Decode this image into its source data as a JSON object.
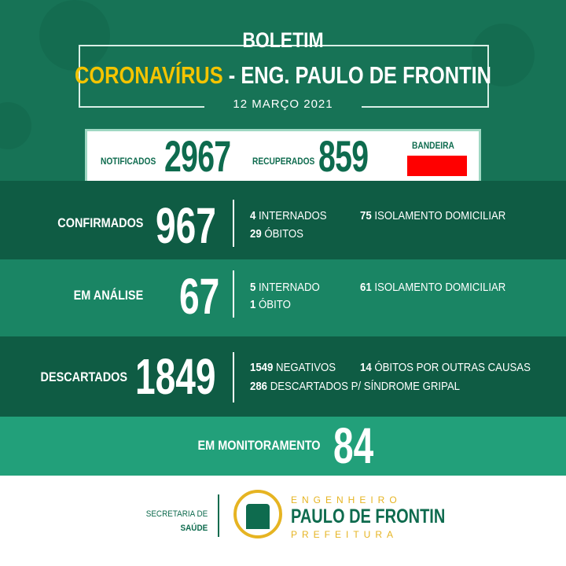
{
  "header": {
    "title": "BOLETIM",
    "subject": "CORONAVÍRUS",
    "separator": " - ",
    "place": "ENG. PAULO DE FRONTIN",
    "date": "12 MARÇO 2021"
  },
  "summary": {
    "notified_label": "NOTIFICADOS",
    "notified": "2967",
    "recovered_label": "RECUPERADOS",
    "recovered": "859",
    "flag_label": "BANDEIRA",
    "flag_color": "#ff0000"
  },
  "confirmed": {
    "label": "CONFIRMADOS",
    "value": "967",
    "hosp": "4",
    "hosp_label": "INTERNADOS",
    "deaths": "29",
    "deaths_label": "ÓBITOS",
    "home": "75",
    "home_label": "ISOLAMENTO DOMICILIAR"
  },
  "analysis": {
    "label": "EM ANÁLISE",
    "value": "67",
    "hosp": "5",
    "hosp_label": "INTERNADO",
    "deaths": "1",
    "deaths_label": "ÓBITO",
    "home": "61",
    "home_label": "ISOLAMENTO DOMICILIAR"
  },
  "discarded": {
    "label": "DESCARTADOS",
    "value": "1849",
    "neg": "1549",
    "neg_label": "NEGATIVOS",
    "other": "14",
    "other_label": "ÓBITOS POR OUTRAS CAUSAS",
    "flu": "286",
    "flu_label": "DESCARTADOS P/ SÍNDROME GRIPAL"
  },
  "monitoring": {
    "label": "EM MONITORAMENTO",
    "value": "84"
  },
  "footer": {
    "dept_line1": "SECRETARIA DE",
    "dept_line2": "SAÚDE",
    "city_top": "ENGENHEIRO",
    "city_name": "PAULO DE FRONTIN",
    "city_bottom": "PREFEITURA"
  },
  "colors": {
    "green": "#177356",
    "dark_band": "#0f5c44",
    "yellow": "#f4c400"
  }
}
